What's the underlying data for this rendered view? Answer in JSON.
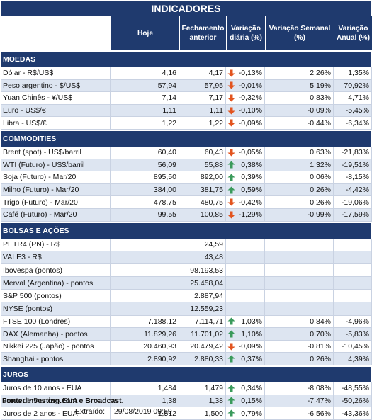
{
  "title": "INDICADORES",
  "headers": {
    "hoje": "Hoje",
    "fechamento": "Fechamento anterior",
    "var_diaria": "Variação diária (%)",
    "var_semanal": "Variação Semanal (%)",
    "var_anual": "Variação Anual (%)"
  },
  "colors": {
    "header_bg": "#1f3a6e",
    "alt_row": "#dde5f1",
    "up": "#3a9a5b",
    "down": "#e2541f"
  },
  "sections": [
    {
      "name": "MOEDAS",
      "rows": [
        {
          "name": "Dólar - R$/US$",
          "hoje": "4,16",
          "anterior": "4,17",
          "trend": "down",
          "diaria": "-0,13%",
          "semanal": "2,26%",
          "anual": "1,35%"
        },
        {
          "name": "Peso argentino - $/US$",
          "hoje": "57,94",
          "anterior": "57,95",
          "trend": "down",
          "diaria": "-0,01%",
          "semanal": "5,19%",
          "anual": "70,92%"
        },
        {
          "name": "Yuan Chinês - ¥/US$",
          "hoje": "7,14",
          "anterior": "7,17",
          "trend": "down",
          "diaria": "-0,32%",
          "semanal": "0,83%",
          "anual": "4,71%"
        },
        {
          "name": "Euro - US$/€",
          "hoje": "1,11",
          "anterior": "1,11",
          "trend": "down",
          "diaria": "-0,10%",
          "semanal": "-0,09%",
          "anual": "-5,45%"
        },
        {
          "name": "Libra - US$/£",
          "hoje": "1,22",
          "anterior": "1,22",
          "trend": "down",
          "diaria": "-0,09%",
          "semanal": "-0,44%",
          "anual": "-6,34%"
        }
      ]
    },
    {
      "name": "COMMODITIES",
      "rows": [
        {
          "name": "Brent (spot) - US$/barril",
          "hoje": "60,40",
          "anterior": "60,43",
          "trend": "down",
          "diaria": "-0,05%",
          "semanal": "0,63%",
          "anual": "-21,83%"
        },
        {
          "name": "WTI (Futuro) - US$/barril",
          "hoje": "56,09",
          "anterior": "55,88",
          "trend": "up",
          "diaria": "0,38%",
          "semanal": "1,32%",
          "anual": "-19,51%"
        },
        {
          "name": "Soja (Futuro) - Mar/20",
          "hoje": "895,50",
          "anterior": "892,00",
          "trend": "up",
          "diaria": "0,39%",
          "semanal": "0,06%",
          "anual": "-8,15%"
        },
        {
          "name": "Milho (Futuro) - Mar/20",
          "hoje": "384,00",
          "anterior": "381,75",
          "trend": "up",
          "diaria": "0,59%",
          "semanal": "0,26%",
          "anual": "-4,42%"
        },
        {
          "name": "Trigo (Futuro) - Mar/20",
          "hoje": "478,75",
          "anterior": "480,75",
          "trend": "down",
          "diaria": "-0,42%",
          "semanal": "0,26%",
          "anual": "-19,06%"
        },
        {
          "name": "Café (Futuro) - Mar/20",
          "hoje": "99,55",
          "anterior": "100,85",
          "trend": "down",
          "diaria": "-1,29%",
          "semanal": "-0,99%",
          "anual": "-17,59%"
        }
      ]
    },
    {
      "name": "BOLSAS E AÇÕES",
      "rows": [
        {
          "name": "PETR4 (PN) - R$",
          "hoje": "",
          "anterior": "24,59",
          "trend": "",
          "diaria": "",
          "semanal": "",
          "anual": ""
        },
        {
          "name": "VALE3 - R$",
          "hoje": "",
          "anterior": "43,48",
          "trend": "",
          "diaria": "",
          "semanal": "",
          "anual": ""
        },
        {
          "name": "Ibovespa (pontos)",
          "hoje": "",
          "anterior": "98.193,53",
          "trend": "",
          "diaria": "",
          "semanal": "",
          "anual": ""
        },
        {
          "name": "Merval (Argentina) - pontos",
          "hoje": "",
          "anterior": "25.458,04",
          "trend": "",
          "diaria": "",
          "semanal": "",
          "anual": ""
        },
        {
          "name": "S&P 500 (pontos)",
          "hoje": "",
          "anterior": "2.887,94",
          "trend": "",
          "diaria": "",
          "semanal": "",
          "anual": ""
        },
        {
          "name": "NYSE (pontos)",
          "hoje": "",
          "anterior": "12.559,23",
          "trend": "",
          "diaria": "",
          "semanal": "",
          "anual": ""
        },
        {
          "name": "FTSE 100 (Londres)",
          "hoje": "7.188,12",
          "anterior": "7.114,71",
          "trend": "up",
          "diaria": "1,03%",
          "semanal": "0,84%",
          "anual": "-4,96%"
        },
        {
          "name": "DAX (Alemanha) - pontos",
          "hoje": "11.829,26",
          "anterior": "11.701,02",
          "trend": "up",
          "diaria": "1,10%",
          "semanal": "0,70%",
          "anual": "-5,83%"
        },
        {
          "name": "Nikkei 225 (Japão) - pontos",
          "hoje": "20.460,93",
          "anterior": "20.479,42",
          "trend": "down",
          "diaria": "-0,09%",
          "semanal": "-0,81%",
          "anual": "-10,45%"
        },
        {
          "name": "Shanghai - pontos",
          "hoje": "2.890,92",
          "anterior": "2.880,33",
          "trend": "up",
          "diaria": "0,37%",
          "semanal": "0,26%",
          "anual": "4,39%"
        }
      ]
    },
    {
      "name": "JUROS",
      "rows": [
        {
          "name": "Juros de 10 anos - EUA",
          "hoje": "1,484",
          "anterior": "1,479",
          "trend": "up",
          "diaria": "0,34%",
          "semanal": "-8,08%",
          "anual": "-48,55%"
        },
        {
          "name": "Juros de 5 anos - EUA",
          "hoje": "1,38",
          "anterior": "1,38",
          "trend": "up",
          "diaria": "0,15%",
          "semanal": "-7,47%",
          "anual": "-50,26%"
        },
        {
          "name": "Juros de 2 anos - EUA",
          "hoje": "1,512",
          "anterior": "1,500",
          "trend": "up",
          "diaria": "0,79%",
          "semanal": "-6,56%",
          "anual": "-43,36%"
        }
      ]
    }
  ],
  "footer": {
    "fonte": "Fonte: Investing.com e Broadcast.",
    "extraido_label": "Extraído:",
    "extraido_value": "29/08/2019 09:59"
  }
}
